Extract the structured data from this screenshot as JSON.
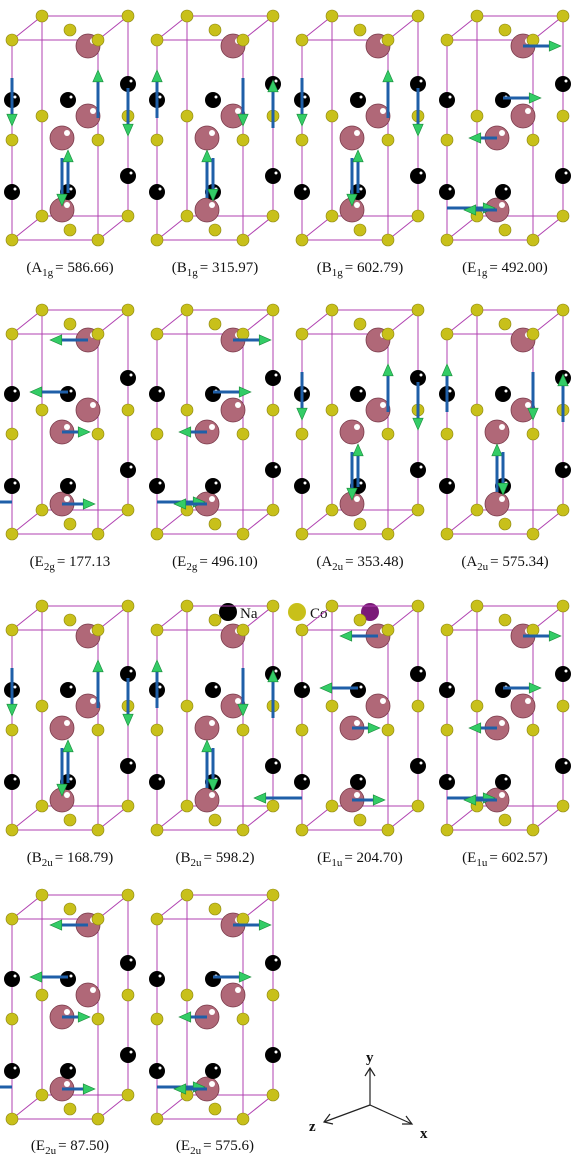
{
  "captions": [
    {
      "main": "(A",
      "sub": "1g",
      "rest": "= 586.66)"
    },
    {
      "main": "(B",
      "sub": "1g",
      "rest": "= 315.97)"
    },
    {
      "main": "(B",
      "sub": "1g",
      "rest": "= 602.79)"
    },
    {
      "main": "(E",
      "sub": "1g",
      "rest": "= 492.00)"
    },
    {
      "main": "(E",
      "sub": "2g",
      "rest": "= 177.13"
    },
    {
      "main": "(E",
      "sub": "2g",
      "rest": "= 496.10)"
    },
    {
      "main": "(A",
      "sub": "2u",
      "rest": "= 353.48)"
    },
    {
      "main": "(A",
      "sub": "2u",
      "rest": "= 575.34)"
    },
    {
      "main": "(B",
      "sub": "2u",
      "rest": "= 168.79)"
    },
    {
      "main": "(B",
      "sub": "2u",
      "rest": "= 598.2)"
    },
    {
      "main": "(E",
      "sub": "1u",
      "rest": "= 204.70)"
    },
    {
      "main": "(E",
      "sub": "1u",
      "rest": "= 602.57)"
    },
    {
      "main": "(E",
      "sub": "2u",
      "rest": "= 87.50)"
    },
    {
      "main": "(E",
      "sub": "2u",
      "rest": "= 575.6)"
    }
  ],
  "legend": {
    "na": "Na",
    "co": "Co"
  },
  "axes": {
    "y": "y",
    "z": "z",
    "x": "x"
  }
}
